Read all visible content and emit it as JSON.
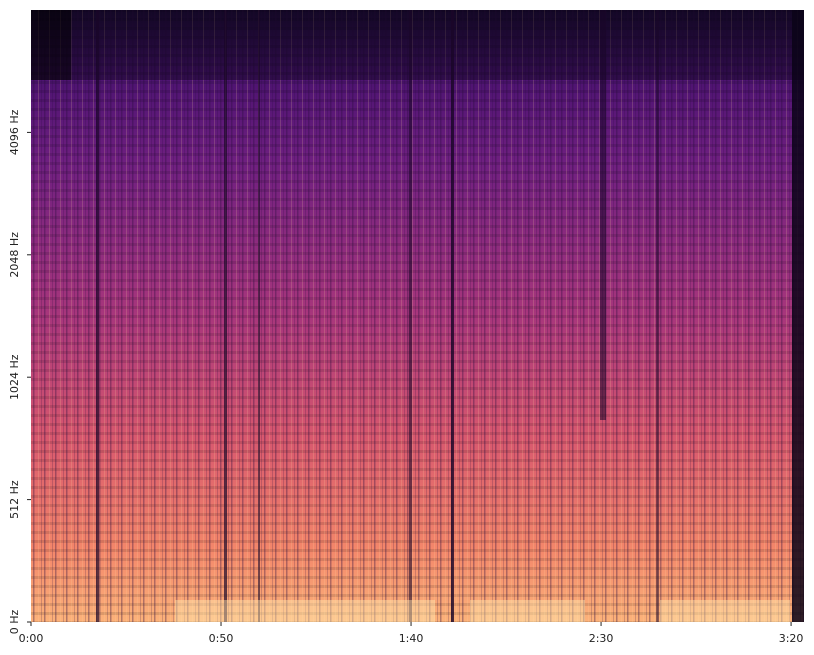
{
  "chart_data": {
    "type": "spectrogram",
    "xlim": [
      0,
      203.4
    ],
    "xticks": [
      {
        "value": 0,
        "label": "0:00"
      },
      {
        "value": 50,
        "label": "0:50"
      },
      {
        "value": 100,
        "label": "1:40"
      },
      {
        "value": 150,
        "label": "2:30"
      },
      {
        "value": 200,
        "label": "3:20"
      }
    ],
    "ylim": [
      0,
      8192
    ],
    "yscale": "symlog",
    "linthresh": 512,
    "yticks": [
      {
        "value": 0,
        "label": "0 Hz"
      },
      {
        "value": 512,
        "label": "512 Hz"
      },
      {
        "value": 1024,
        "label": "1024 Hz"
      },
      {
        "value": 2048,
        "label": "2048 Hz"
      },
      {
        "value": 4096,
        "label": "4096 Hz"
      }
    ]
  }
}
